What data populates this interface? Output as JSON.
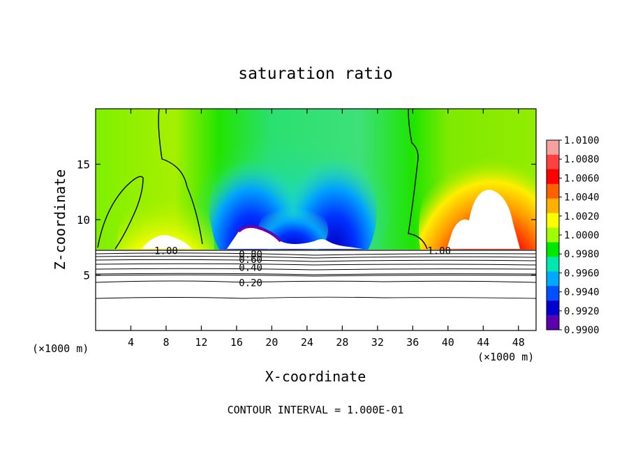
{
  "chart_data": {
    "type": "heatmap",
    "title": "saturation ratio",
    "xlabel": "X-coordinate",
    "ylabel": "Z-coordinate",
    "x_unit": "(×1000 m)",
    "x_unit_right": "(×1000 m)",
    "xlim": [
      0,
      50
    ],
    "ylim": [
      0,
      20
    ],
    "x_ticks": [
      4,
      8,
      12,
      16,
      20,
      24,
      28,
      32,
      36,
      40,
      44,
      48
    ],
    "y_ticks": [
      5,
      10,
      15
    ],
    "colorbar": {
      "levels": [
        "1.0100",
        "1.0080",
        "1.0060",
        "1.0040",
        "1.0020",
        "1.0000",
        "0.9980",
        "0.9960",
        "0.9940",
        "0.9920",
        "0.9900"
      ],
      "colors": [
        "#f7a0a0",
        "#ff4040",
        "#ff0000",
        "#ff6000",
        "#ffb000",
        "#ffff00",
        "#a0ff00",
        "#00e800",
        "#00e8b0",
        "#00a8ff",
        "#0050ff",
        "#0000d0",
        "#5a00b0"
      ]
    },
    "contour_labels": [
      {
        "text": "1.00",
        "x": 8.0,
        "y": 7.2
      },
      {
        "text": "0.80",
        "x": 17.6,
        "y": 6.9
      },
      {
        "text": "0.60",
        "x": 17.6,
        "y": 6.4
      },
      {
        "text": "0.40",
        "x": 17.6,
        "y": 5.7
      },
      {
        "text": "0.20",
        "x": 17.6,
        "y": 4.3
      },
      {
        "text": "1.00",
        "x": 39.0,
        "y": 7.2
      }
    ],
    "footer": "CONTOUR INTERVAL = 1.000E-01"
  }
}
